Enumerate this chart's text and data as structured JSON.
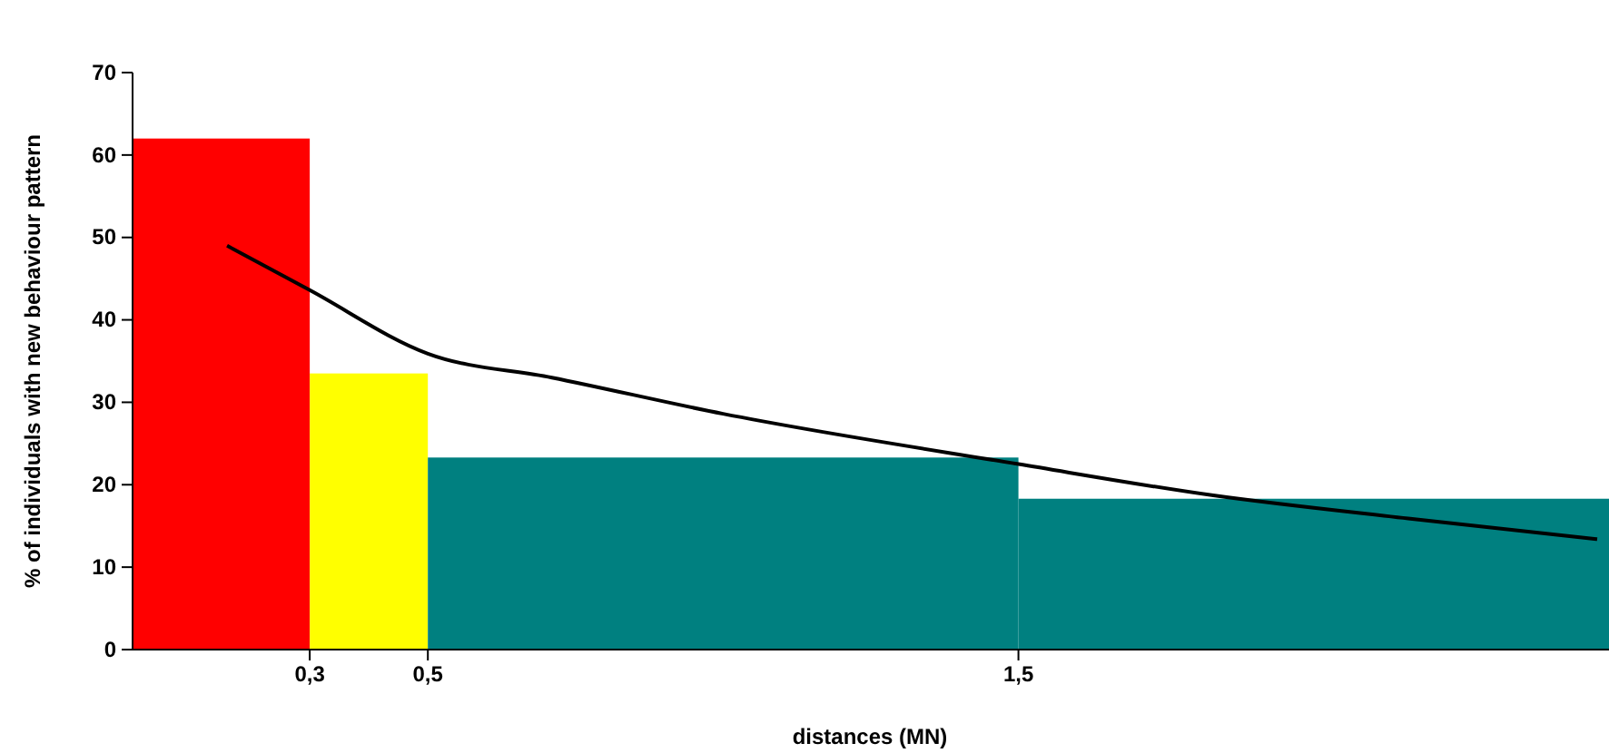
{
  "chart_data": {
    "type": "histogram",
    "xlabel": "distances (MN)",
    "ylabel": "% of individuals with new behaviour pattern",
    "bins": [
      0,
      0.3,
      0.5,
      1.5,
      2.5
    ],
    "values": [
      62,
      33.5,
      23.3,
      18.3
    ],
    "colors": [
      "#ff0000",
      "#ffff00",
      "#008080",
      "#008080"
    ],
    "xlim": [
      0,
      2.5
    ],
    "xticks": [
      {
        "value": 0.3,
        "label": "0,3"
      },
      {
        "value": 0.5,
        "label": "0,5"
      },
      {
        "value": 1.5,
        "label": "1,5"
      }
    ],
    "ylim": [
      0,
      70
    ],
    "yticks": [
      0,
      10,
      20,
      30,
      40,
      50,
      60,
      70
    ],
    "grid": false,
    "marker": "none",
    "series": [
      {
        "type": "line",
        "color": "#000000",
        "x": [
          0.16,
          0.3,
          0.5,
          0.71,
          1.0,
          1.5,
          1.83,
          2.16,
          2.48
        ],
        "values": [
          49,
          43.6,
          35.9,
          33,
          28.6,
          22.5,
          18.7,
          15.9,
          13.4
        ]
      }
    ]
  }
}
